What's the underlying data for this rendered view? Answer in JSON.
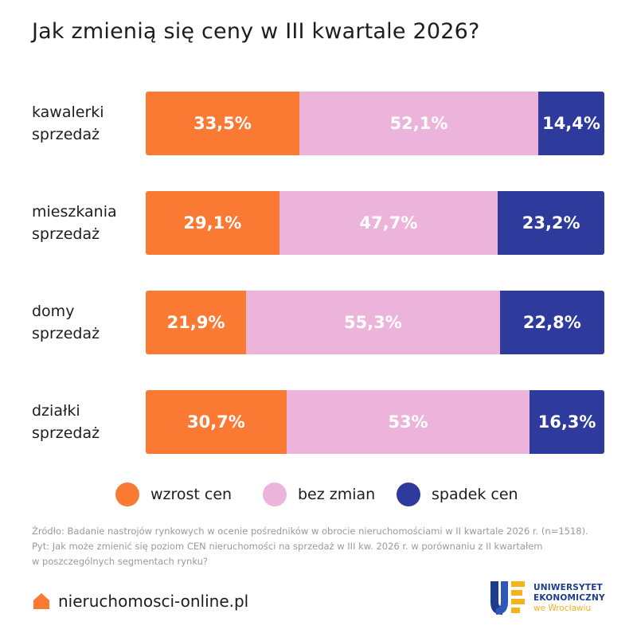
{
  "chart_data": {
    "type": "bar",
    "orientation": "horizontal",
    "stacked": true,
    "title": "Jak zmienią się ceny w III kwartale 2026?",
    "categories": [
      [
        "kawalerki",
        "sprzedaż"
      ],
      [
        "mieszkania",
        "sprzedaż"
      ],
      [
        "domy",
        "sprzedaż"
      ],
      [
        "działki",
        "sprzedaż"
      ]
    ],
    "series": [
      {
        "name": "wzrost cen",
        "color": "#fb7a33",
        "values": [
          33.5,
          29.1,
          21.9,
          30.7
        ],
        "labels": [
          "33,5%",
          "29,1%",
          "21,9%",
          "30,7%"
        ]
      },
      {
        "name": "bez zmian",
        "color": "#ecb4da",
        "values": [
          52.1,
          47.7,
          55.3,
          53
        ],
        "labels": [
          "52,1%",
          "47,7%",
          "55,3%",
          "53%"
        ]
      },
      {
        "name": "spadek cen",
        "color": "#2e3b9c",
        "values": [
          14.4,
          23.2,
          22.8,
          16.3
        ],
        "labels": [
          "14,4%",
          "23,2%",
          "22,8%",
          "16,3%"
        ]
      }
    ],
    "xlim": [
      0,
      100
    ],
    "legend": "bottom",
    "grid": false
  },
  "source": {
    "line1": "Źródło: Badanie nastrojów rynkowych w ocenie  pośredników w obrocie nieruchomościami w II kwartale 2026 r. (n=1518).",
    "line2": "Pyt: Jak może zmienić się poziom CEN nieruchomości na sprzedaż w III kw. 2026 r. w porównaniu z II kwartałem",
    "line3": "w poszczególnych segmentach rynku?"
  },
  "footer": {
    "brand_text": "nieruchomosci-online.pl",
    "brand_icon": "house-icon",
    "brand_color": "#fb7a33"
  },
  "university": {
    "line1": "UNIWERSYTET",
    "line2": "EKONOMICZNY",
    "line3": "we Wrocławiu",
    "logo_icon": "university-logo"
  }
}
